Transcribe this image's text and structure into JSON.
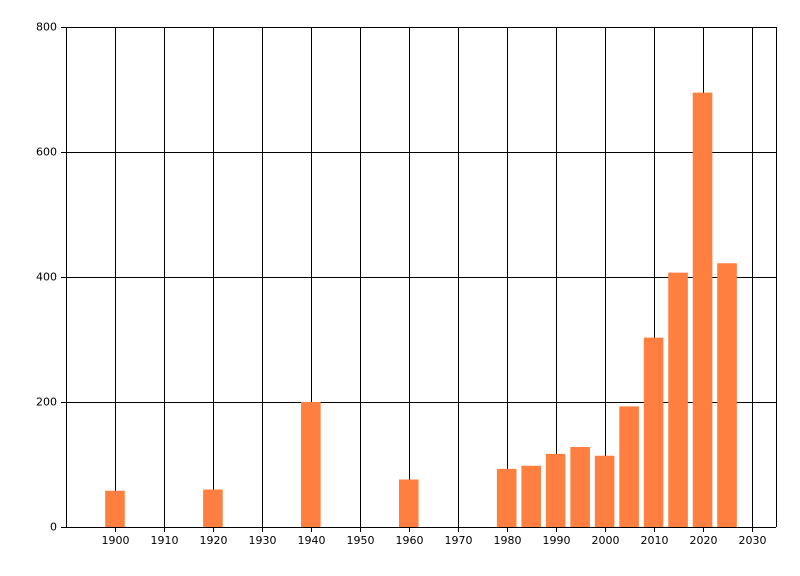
{
  "chart_data": {
    "type": "bar",
    "x": [
      1900,
      1920,
      1940,
      1960,
      1980,
      1985,
      1990,
      1995,
      2000,
      2005,
      2010,
      2015,
      2020,
      2025
    ],
    "values": [
      58,
      60,
      200,
      76,
      93,
      98,
      117,
      128,
      114,
      193,
      303,
      407,
      695,
      422
    ],
    "color": "#ff7f40",
    "xlim": [
      1890,
      2035
    ],
    "xticks": [
      1900,
      1910,
      1920,
      1930,
      1940,
      1950,
      1960,
      1970,
      1980,
      1990,
      2000,
      2010,
      2020,
      2030
    ],
    "ylim": [
      0,
      800
    ],
    "yticks": [
      0,
      200,
      400,
      600,
      800
    ],
    "grid": true
  }
}
